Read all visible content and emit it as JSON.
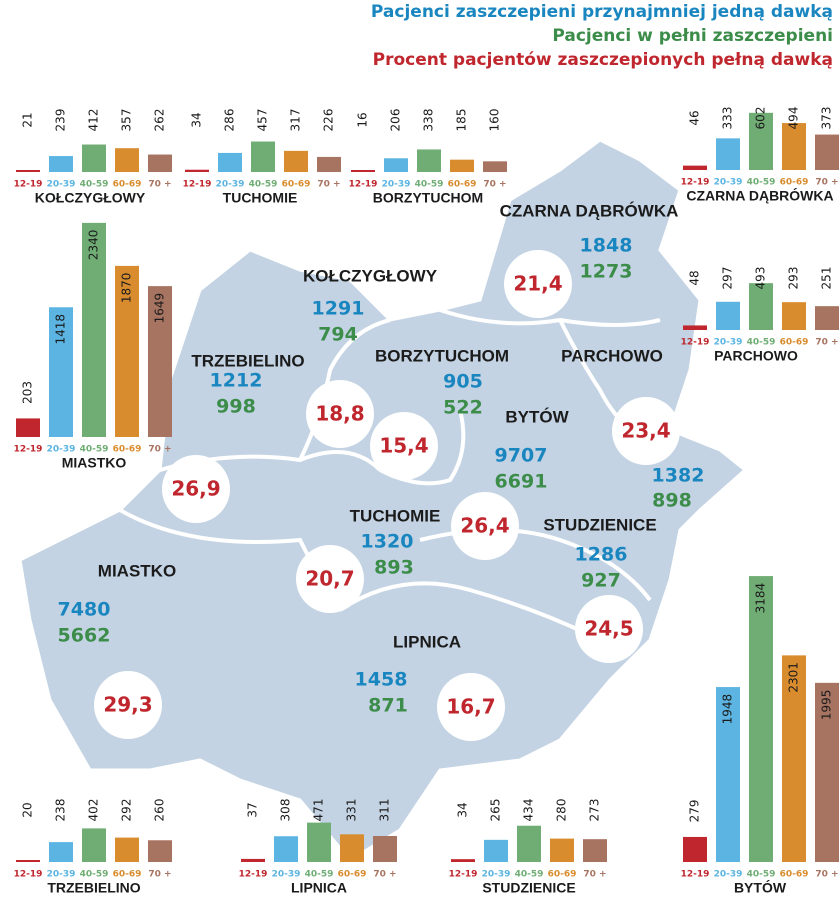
{
  "legend": {
    "first_dose": "Pacjenci zaszczepieni przynajmniej jedną dawką",
    "full": "Pacjenci w pełni zaszczepieni",
    "percent": "Procent pacjentów zaszczepionych pełną dawką"
  },
  "colors": {
    "first_dose": "#1a86c0",
    "full": "#3c8c4a",
    "percent": "#c0262d",
    "map_fill": "#c3d3e3",
    "age_groups": [
      "#c0262d",
      "#5bb4e2",
      "#6fad74",
      "#d98c2e",
      "#a87462"
    ]
  },
  "chart_data": [
    {
      "type": "bar",
      "title": "KOŁCZYGŁOWY",
      "categories": [
        "12-19",
        "20-39",
        "40-59",
        "60-69",
        "70 +"
      ],
      "values": [
        21,
        239,
        412,
        357,
        262
      ]
    },
    {
      "type": "bar",
      "title": "TUCHOMIE",
      "categories": [
        "12-19",
        "20-39",
        "40-59",
        "60-69",
        "70 +"
      ],
      "values": [
        34,
        286,
        457,
        317,
        226
      ]
    },
    {
      "type": "bar",
      "title": "BORZYTUCHOM",
      "categories": [
        "12-19",
        "20-39",
        "40-59",
        "60-69",
        "70 +"
      ],
      "values": [
        16,
        206,
        338,
        185,
        160
      ]
    },
    {
      "type": "bar",
      "title": "CZARNA DĄBRÓWKA",
      "categories": [
        "12-19",
        "20-39",
        "40-59",
        "60-69",
        "70 +"
      ],
      "values": [
        46,
        333,
        602,
        494,
        373
      ]
    },
    {
      "type": "bar",
      "title": "PARCHOWO",
      "categories": [
        "12-19",
        "20-39",
        "40-59",
        "60-69",
        "70 +"
      ],
      "values": [
        48,
        297,
        493,
        293,
        251
      ]
    },
    {
      "type": "bar",
      "title": "MIASTKO",
      "categories": [
        "12-19",
        "20-39",
        "40-59",
        "60-69",
        "70 +"
      ],
      "values": [
        203,
        1418,
        2340,
        1870,
        1649
      ]
    },
    {
      "type": "bar",
      "title": "TRZEBIELINO",
      "categories": [
        "12-19",
        "20-39",
        "40-59",
        "60-69",
        "70 +"
      ],
      "values": [
        20,
        238,
        402,
        292,
        260
      ]
    },
    {
      "type": "bar",
      "title": "LIPNICA",
      "categories": [
        "12-19",
        "20-39",
        "40-59",
        "60-69",
        "70 +"
      ],
      "values": [
        37,
        308,
        471,
        331,
        311
      ]
    },
    {
      "type": "bar",
      "title": "STUDZIENICE",
      "categories": [
        "12-19",
        "20-39",
        "40-59",
        "60-69",
        "70 +"
      ],
      "values": [
        34,
        265,
        434,
        280,
        273
      ]
    },
    {
      "type": "bar",
      "title": "BYTÓW",
      "categories": [
        "12-19",
        "20-39",
        "40-59",
        "60-69",
        "70 +"
      ],
      "values": [
        279,
        1948,
        3184,
        2301,
        1995
      ]
    }
  ],
  "map": {
    "regions": [
      {
        "name": "CZARNA DĄBRÓWKA",
        "first_dose": "1848",
        "full": "1273",
        "percent": "21,4"
      },
      {
        "name": "KOŁCZYGŁOWY",
        "first_dose": "1291",
        "full": "794",
        "percent": "18,8"
      },
      {
        "name": "TRZEBIELINO",
        "first_dose": "1212",
        "full": "998",
        "percent": "26,9"
      },
      {
        "name": "BORZYTUCHOM",
        "first_dose": "905",
        "full": "522",
        "percent": "15,4"
      },
      {
        "name": "BYTÓW",
        "first_dose": "9707",
        "full": "6691",
        "percent": "26,4"
      },
      {
        "name": "PARCHOWO",
        "first_dose": "1382",
        "full": "898",
        "percent": "23,4"
      },
      {
        "name": "TUCHOMIE",
        "first_dose": "1320",
        "full": "893",
        "percent": "20,7"
      },
      {
        "name": "STUDZIENICE",
        "first_dose": "1286",
        "full": "927",
        "percent": "24,5"
      },
      {
        "name": "MIASTKO",
        "first_dose": "7480",
        "full": "5662",
        "percent": "29,3"
      },
      {
        "name": "LIPNICA",
        "first_dose": "1458",
        "full": "871",
        "percent": "16,7"
      }
    ]
  }
}
